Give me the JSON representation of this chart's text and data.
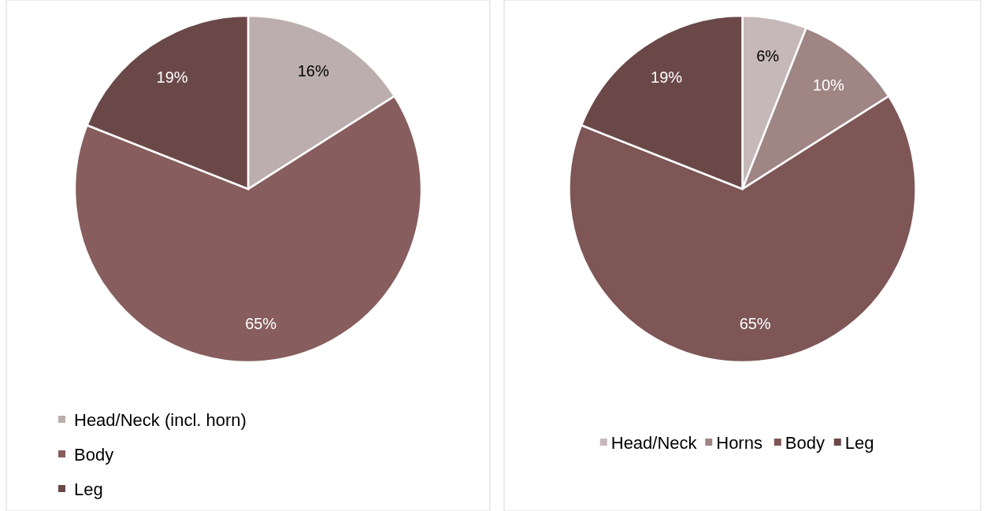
{
  "chart_data": [
    {
      "type": "pie",
      "categories": [
        "Head/Neck (incl. horn)",
        "Body",
        "Leg"
      ],
      "values": [
        16,
        65,
        19
      ],
      "value_labels": [
        "16%",
        "65%",
        "19%"
      ],
      "colors": [
        "#bcaeae",
        "#875d5d",
        "#6b4848"
      ],
      "legend": "bottom"
    },
    {
      "type": "pie",
      "categories": [
        "Head/Neck",
        "Horns",
        "Body",
        "Leg"
      ],
      "values": [
        6,
        10,
        65,
        19
      ],
      "value_labels": [
        "6%",
        "10%",
        "65%",
        "19%"
      ],
      "colors": [
        "#c6b8b8",
        "#a08585",
        "#7e5656",
        "#6b4848"
      ],
      "legend": "bottom"
    }
  ]
}
